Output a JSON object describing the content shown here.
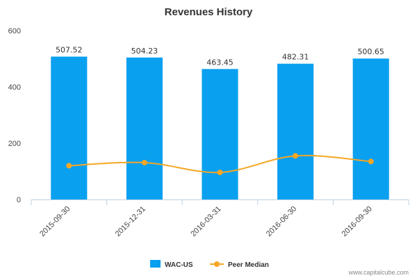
{
  "chart_data": {
    "type": "bar",
    "title": "Revenues History",
    "xlabel": "",
    "ylabel": "",
    "categories": [
      "2015-09-30",
      "2015-12-31",
      "2016-03-31",
      "2016-06-30",
      "2016-09-30"
    ],
    "series": [
      {
        "name": "WAC-US",
        "type": "bar",
        "values": [
          507.52,
          504.23,
          463.45,
          482.31,
          500.65
        ],
        "color": "#0aa0f0"
      },
      {
        "name": "Peer Median",
        "type": "line",
        "values": [
          120,
          131,
          96,
          155,
          135
        ],
        "color": "#f5a623"
      }
    ],
    "data_labels": [
      "507.52",
      "504.23",
      "463.45",
      "482.31",
      "500.65"
    ],
    "ylim": [
      0,
      600
    ],
    "yticks": [
      0,
      200,
      400,
      600
    ],
    "grid": false,
    "legend": "bottom-center"
  },
  "watermark": "www.capitalcube.com"
}
